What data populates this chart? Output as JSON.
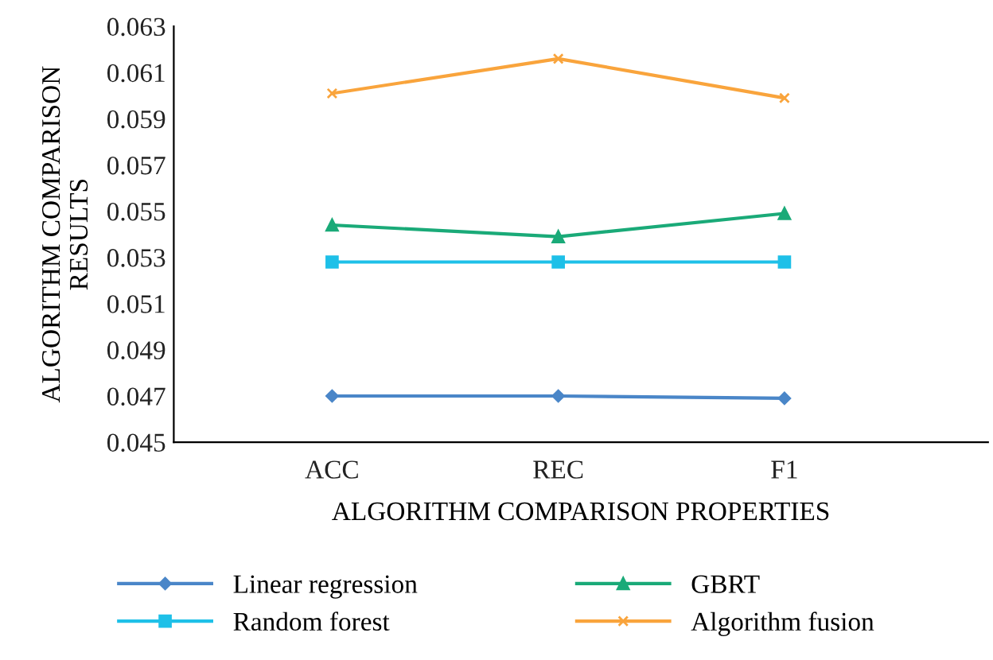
{
  "chart_data": {
    "type": "line",
    "xlabel": "ALGORITHM COMPARISON PROPERTIES",
    "ylabel": "ALGORITHM COMPARISON\nRESULTS",
    "categories": [
      "ACC",
      "REC",
      "F1"
    ],
    "series": [
      {
        "name": "Linear regression",
        "color": "#4a86c8",
        "marker": "diamond",
        "values": [
          0.047,
          0.047,
          0.0469
        ]
      },
      {
        "name": "Random forest",
        "color": "#1ec0e8",
        "marker": "square",
        "values": [
          0.0528,
          0.0528,
          0.0528
        ]
      },
      {
        "name": "GBRT",
        "color": "#1aaa78",
        "marker": "triangle",
        "values": [
          0.0544,
          0.0539,
          0.0549
        ]
      },
      {
        "name": "Algorithm fusion",
        "color": "#f9a43c",
        "marker": "cross",
        "values": [
          0.0601,
          0.0616,
          0.0599
        ]
      }
    ],
    "ylim": [
      0.045,
      0.063
    ],
    "yticks": [
      0.045,
      0.047,
      0.049,
      0.051,
      0.053,
      0.055,
      0.057,
      0.059,
      0.061,
      0.063
    ],
    "grid": false,
    "legend": "bottom",
    "line_style": "solid"
  }
}
